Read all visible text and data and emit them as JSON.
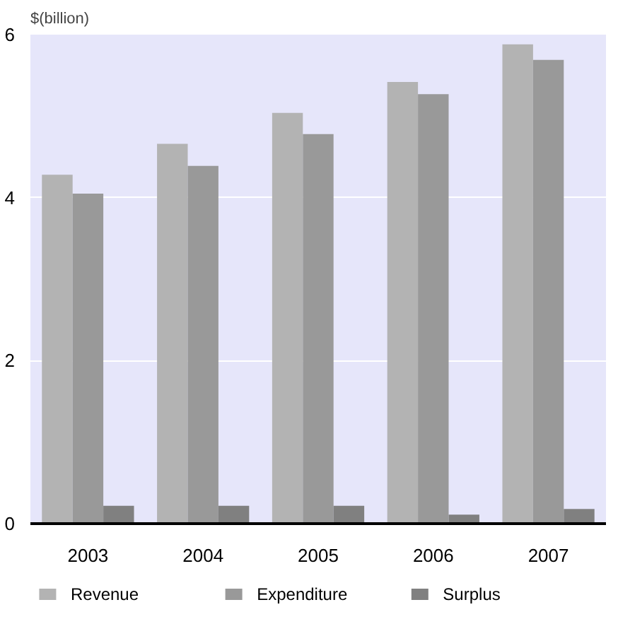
{
  "chart_data": {
    "type": "bar",
    "ylabel": "$(billion)",
    "categories": [
      "2003",
      "2004",
      "2005",
      "2006",
      "2007"
    ],
    "series": [
      {
        "name": "Revenue",
        "color": "#b3b3b3",
        "values": [
          4.28,
          4.66,
          5.04,
          5.42,
          5.88
        ]
      },
      {
        "name": "Expenditure",
        "color": "#999999",
        "values": [
          4.05,
          4.39,
          4.78,
          5.27,
          5.69
        ]
      },
      {
        "name": "Surplus",
        "color": "#808080",
        "values": [
          0.22,
          0.22,
          0.22,
          0.11,
          0.18
        ]
      }
    ],
    "ylim": [
      0,
      6
    ],
    "yticks": [
      0,
      2,
      4,
      6
    ],
    "grid": "y",
    "legend": "bottom"
  }
}
